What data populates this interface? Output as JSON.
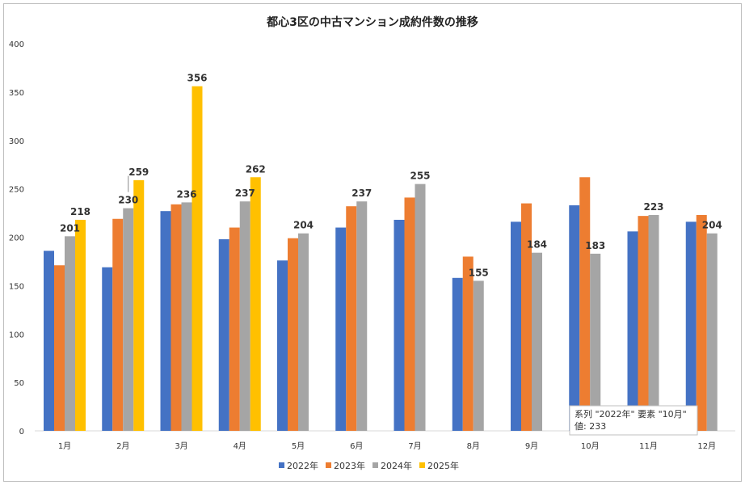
{
  "chart_data": {
    "type": "bar",
    "title": "都心3区の中古マンション成約件数の推移",
    "categories": [
      "1月",
      "2月",
      "3月",
      "4月",
      "5月",
      "6月",
      "7月",
      "8月",
      "9月",
      "10月",
      "11月",
      "12月"
    ],
    "ylim": [
      0,
      400
    ],
    "yticks": [
      0,
      50,
      100,
      150,
      200,
      250,
      300,
      350,
      400
    ],
    "grid": false,
    "legend_position": "bottom",
    "series": [
      {
        "name": "2022年",
        "color": "#4472C4",
        "values": [
          186,
          169,
          227,
          198,
          176,
          210,
          218,
          158,
          216,
          233,
          206,
          216
        ]
      },
      {
        "name": "2023年",
        "color": "#ED7D31",
        "values": [
          171,
          219,
          234,
          210,
          199,
          232,
          241,
          180,
          235,
          262,
          222,
          223
        ]
      },
      {
        "name": "2024年",
        "color": "#A5A5A5",
        "values": [
          201,
          230,
          236,
          237,
          204,
          237,
          255,
          155,
          184,
          183,
          223,
          204
        ]
      },
      {
        "name": "2025年",
        "color": "#FFC000",
        "values": [
          218,
          259,
          356,
          262,
          null,
          null,
          null,
          null,
          null,
          null,
          null,
          null
        ]
      }
    ],
    "data_labels": [
      {
        "series": 2,
        "category": 0,
        "text": "201"
      },
      {
        "series": 3,
        "category": 0,
        "text": "218"
      },
      {
        "series": 2,
        "category": 1,
        "text": "230"
      },
      {
        "series": 3,
        "category": 1,
        "text": "259"
      },
      {
        "series": 2,
        "category": 2,
        "text": "236"
      },
      {
        "series": 3,
        "category": 2,
        "text": "356"
      },
      {
        "series": 2,
        "category": 3,
        "text": "237"
      },
      {
        "series": 3,
        "category": 3,
        "text": "262"
      },
      {
        "series": 2,
        "category": 4,
        "text": "204"
      },
      {
        "series": 2,
        "category": 5,
        "text": "237"
      },
      {
        "series": 2,
        "category": 6,
        "text": "255"
      },
      {
        "series": 2,
        "category": 7,
        "text": "155"
      },
      {
        "series": 2,
        "category": 8,
        "text": "184"
      },
      {
        "series": 2,
        "category": 9,
        "text": "183"
      },
      {
        "series": 2,
        "category": 10,
        "text": "223"
      },
      {
        "series": 2,
        "category": 11,
        "text": "204"
      }
    ],
    "tooltip": {
      "line1": "系列 \"2022年\" 要素 \"10月\"",
      "line2": "値: 233"
    }
  }
}
